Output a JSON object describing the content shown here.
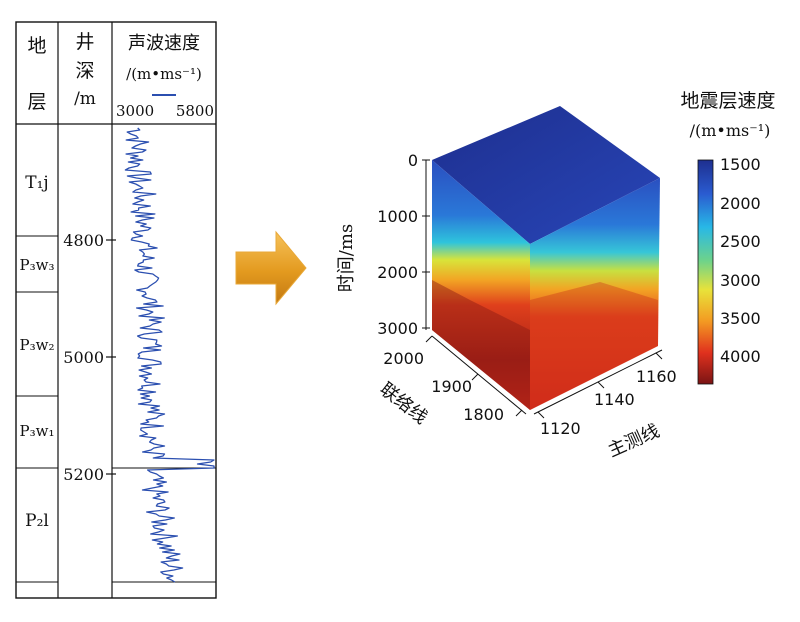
{
  "well_log": {
    "headers": {
      "strata": [
        "地",
        "层"
      ],
      "depth": [
        "井",
        "深",
        "/m"
      ],
      "velocity_title": "声波速度",
      "velocity_unit": "/(m•ms⁻¹)",
      "velocity_min": "3000",
      "velocity_max": "5800"
    },
    "formations": [
      "T₁j",
      "P₃w₃",
      "P₃w₂",
      "P₃w₁",
      "P₂l"
    ],
    "depth_ticks": [
      "4800",
      "5000",
      "5200"
    ],
    "curve_color": "#2b4fb0"
  },
  "arrow": {
    "color": "#e39a1f"
  },
  "cube": {
    "colorbar_title": "地震层速度",
    "colorbar_unit": "/(m•ms⁻¹)",
    "colorbar_ticks": [
      "1500",
      "2000",
      "2500",
      "3000",
      "3500",
      "4000"
    ],
    "time_axis_label": "时间/ms",
    "time_ticks": [
      "0",
      "1000",
      "2000",
      "3000"
    ],
    "crossline_label": "联络线",
    "crossline_ticks": [
      "2000",
      "1900",
      "1800"
    ],
    "inline_label": "主测线",
    "inline_ticks": [
      "1120",
      "1140",
      "1160"
    ]
  }
}
